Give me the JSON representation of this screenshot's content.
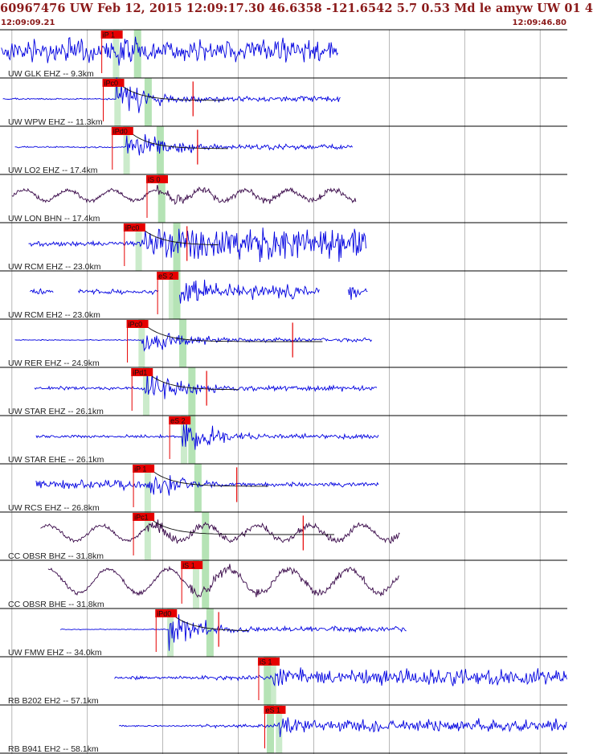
{
  "header": {
    "title": "60967476 UW Feb 12, 2015 12:09:17.30   46.6358 -121.6542  5.7 0.53 Md le amyw UW 01   4",
    "time_start": "12:09:09.21",
    "time_end": "12:09:46.80"
  },
  "colors": {
    "text": "#8b1a1a",
    "trace_short_period": "#0000e0",
    "trace_broadband": "#3a0a4a",
    "pick": "#e60000",
    "pick_window": "#b5e3b5",
    "divider": "#000000",
    "grid": "#999999"
  },
  "chart_data": {
    "type": "seismogram",
    "x_range": [
      9.21,
      46.8
    ],
    "x_unit": "seconds after 12:09",
    "grid": true,
    "traces": [
      {
        "label": "UW GLK EHZ -- 9.3km",
        "pick": "iP 1",
        "kind": "sp",
        "start": 9.3,
        "end": 31.6,
        "onset": 16.9,
        "pick_time": 15.9,
        "s_time": 18.3,
        "amp": 0.9,
        "bg": 0.55,
        "style": "sat"
      },
      {
        "label": "UW WPW EHZ -- 11.3km",
        "pick": "iPc0",
        "kind": "sp",
        "start": 9.4,
        "end": 31.8,
        "onset": 16.9,
        "pick_time": 16.0,
        "s_time": 19.0,
        "amp": 0.9,
        "bg": 0.04,
        "style": "decay",
        "coda": 22.0
      },
      {
        "label": "UW LO2 EHZ -- 17.4km",
        "pick": "iPd0",
        "kind": "sp",
        "start": 10.2,
        "end": 32.6,
        "onset": 17.6,
        "pick_time": 16.6,
        "s_time": 19.8,
        "amp": 0.9,
        "bg": 0.04,
        "style": "decay",
        "coda": 22.3
      },
      {
        "label": "UW LON BHN -- 17.4km",
        "pick": "iS 0",
        "kind": "bb",
        "start": 10.0,
        "end": 32.8,
        "onset": 19.6,
        "pick_time": 18.9,
        "s_time": 19.9,
        "amp": 0.45,
        "bg": 0.15,
        "style": "bb"
      },
      {
        "label": "UW RCM EHZ -- 23.0km",
        "pick": "iPc0",
        "kind": "sp",
        "start": 11.1,
        "end": 33.5,
        "onset": 18.4,
        "pick_time": 17.4,
        "s_time": 20.9,
        "amp": 0.9,
        "bg": 0.12,
        "style": "grow",
        "coda": 21.6
      },
      {
        "label": "UW RCM EH2 -- 23.0km",
        "pick": "eS 2",
        "kind": "sp",
        "start": 11.2,
        "end": 33.6,
        "onset": 20.7,
        "pick_time": 19.6,
        "s_time": 20.9,
        "amp": 0.75,
        "bg": 0.03,
        "style": "gappy"
      },
      {
        "label": "UW RER EHZ -- 24.9km",
        "pick": "iPc0",
        "kind": "sp",
        "start": 10.2,
        "end": 33.9,
        "onset": 18.6,
        "pick_time": 17.6,
        "s_time": 21.3,
        "amp": 0.75,
        "bg": 0.03,
        "style": "decay",
        "coda": 28.6
      },
      {
        "label": "UW STAR EHZ -- 26.1km",
        "pick": "iPd1",
        "kind": "sp",
        "start": 11.5,
        "end": 34.2,
        "onset": 18.8,
        "pick_time": 17.9,
        "s_time": 21.9,
        "amp": 0.9,
        "bg": 0.08,
        "style": "decay",
        "coda": 22.9
      },
      {
        "label": "UW STAR EHE -- 26.1km",
        "pick": "eS 2",
        "kind": "sp",
        "start": 11.6,
        "end": 34.3,
        "onset": 21.3,
        "pick_time": 20.4,
        "s_time": 21.9,
        "amp": 0.8,
        "bg": 0.08,
        "style": "decay"
      },
      {
        "label": "UW RCS EHZ -- 26.8km",
        "pick": "iP 1",
        "kind": "sp",
        "start": 11.6,
        "end": 34.3,
        "onset": 19.0,
        "pick_time": 18.0,
        "s_time": 22.3,
        "amp": 0.7,
        "bg": 0.3,
        "style": "decay",
        "coda": 24.9
      },
      {
        "label": "CC OBSR BHZ -- 31.8km",
        "pick": "iPc1",
        "kind": "bb",
        "start": 11.9,
        "end": 35.7,
        "onset": 18.9,
        "pick_time": 18.0,
        "s_time": 22.8,
        "amp": 0.5,
        "bg": 0.22,
        "style": "bb",
        "coda": 29.3
      },
      {
        "label": "CC OBSR BHE -- 31.8km",
        "pick": "iS 1",
        "kind": "bb",
        "start": 12.4,
        "end": 35.7,
        "onset": 21.8,
        "pick_time": 21.2,
        "s_time": 22.8,
        "amp": 0.5,
        "bg": 0.35,
        "style": "bb"
      },
      {
        "label": "UW FMW EHZ -- 34.0km",
        "pick": "iPd0",
        "kind": "sp",
        "start": 13.2,
        "end": 36.2,
        "onset": 20.4,
        "pick_time": 19.5,
        "s_time": 23.1,
        "amp": 0.9,
        "bg": 0.02,
        "style": "decay",
        "coda": 23.7
      },
      {
        "label": "RB B202 EH2 -- 57.1km",
        "pick": "iS 1",
        "kind": "sp",
        "start": 16.8,
        "end": 46.8,
        "onset": 27.3,
        "pick_time": 26.3,
        "s_time": 26.9,
        "amp": 0.7,
        "bg": 0.1,
        "style": "grow_late"
      },
      {
        "label": "RB B941 EH2 -- 58.1km",
        "pick": "eS 1",
        "kind": "sp",
        "start": 17.1,
        "end": 46.8,
        "onset": 27.6,
        "pick_time": 26.7,
        "s_time": 27.1,
        "amp": 0.5,
        "bg": 0.07,
        "style": "grow_late"
      }
    ]
  }
}
